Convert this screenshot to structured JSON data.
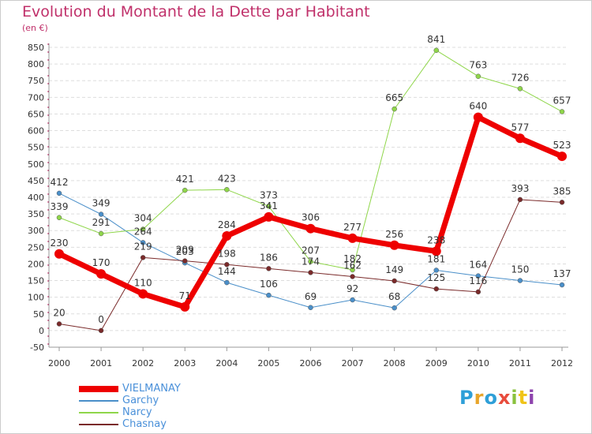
{
  "title": "Evolution du Montant de la Dette par Habitant",
  "unit": "(en €)",
  "logo": {
    "text": "Proxiti",
    "colors": [
      "#2e9fd8",
      "#e8a52a",
      "#2e9fd8",
      "#e84c3d",
      "#8ac23f",
      "#f0c419",
      "#8e44ad"
    ]
  },
  "chart_data": {
    "type": "line",
    "x": [
      "2000",
      "2001",
      "2002",
      "2003",
      "2004",
      "2005",
      "2006",
      "2007",
      "2008",
      "2009",
      "2010",
      "2011",
      "2012"
    ],
    "ylim": [
      -50,
      850
    ],
    "yticks": [
      -50,
      0,
      50,
      100,
      150,
      200,
      250,
      300,
      350,
      400,
      450,
      500,
      550,
      600,
      650,
      700,
      750,
      800,
      850
    ],
    "grid": true,
    "legend": "bottom-left",
    "series": [
      {
        "name": "VIELMANAY",
        "color": "#ee0000",
        "width": 7,
        "marker": 6,
        "values": [
          230,
          170,
          110,
          71,
          284,
          341,
          306,
          277,
          256,
          238,
          640,
          577,
          523
        ]
      },
      {
        "name": "Garchy",
        "color": "#4a8fc9",
        "width": 1,
        "marker": 3,
        "values": [
          412,
          349,
          264,
          203,
          144,
          106,
          69,
          92,
          68,
          181,
          164,
          150,
          137
        ]
      },
      {
        "name": "Narcy",
        "color": "#8fd64a",
        "width": 1,
        "marker": 3,
        "values": [
          339,
          291,
          304,
          421,
          423,
          373,
          207,
          182,
          665,
          841,
          763,
          726,
          657
        ]
      },
      {
        "name": "Chasnay",
        "color": "#7a2a2a",
        "width": 1,
        "marker": 3,
        "values": [
          20,
          0,
          219,
          209,
          198,
          186,
          174,
          162,
          149,
          125,
          116,
          393,
          385
        ]
      }
    ],
    "labels": [
      {
        "series": "VIELMANAY",
        "text": [
          "230",
          "170",
          "110",
          "71",
          "284",
          "341",
          "306",
          "277",
          "256",
          "238",
          "640",
          "577",
          "523"
        ]
      },
      {
        "series": "Garchy",
        "text": [
          "412",
          "349",
          "264",
          "203",
          "144",
          "106",
          "69",
          "92",
          "68",
          "181",
          "164",
          "150",
          "137"
        ]
      },
      {
        "series": "Narcy",
        "text": [
          "339",
          "291",
          "304",
          "421",
          "423",
          "373",
          "207",
          "182",
          "665",
          "841",
          "763",
          "726",
          "657"
        ]
      },
      {
        "series": "Chasnay",
        "text": [
          "20",
          "0",
          "219",
          "209",
          "198",
          "186",
          "174",
          "162",
          "149",
          "125",
          "116",
          "393",
          "385"
        ]
      }
    ]
  }
}
